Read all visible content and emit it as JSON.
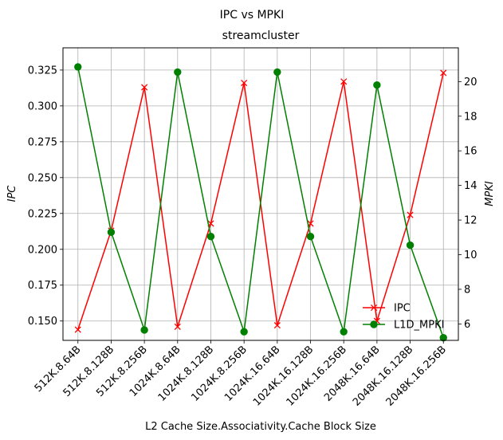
{
  "chart_data": {
    "type": "line",
    "suptitle": "IPC vs MPKI",
    "title": "streamcluster",
    "xlabel": "L2 Cache Size.Associativity.Cache Block Size",
    "ylabel_left": "IPC",
    "ylabel_right": "MPKI",
    "categories": [
      "512K.8.64B",
      "512K.8.128B",
      "512K.8.256B",
      "1024K.8.64B",
      "1024K.8.128B",
      "1024K.8.256B",
      "1024K.16.64B",
      "1024K.16.128B",
      "1024K.16.256B",
      "2048K.16.64B",
      "2048K.16.128B",
      "2048K.16.256B"
    ],
    "ylim_left": [
      0.1365,
      0.3405
    ],
    "yticks_left": [
      "0.150",
      "0.175",
      "0.200",
      "0.225",
      "0.250",
      "0.275",
      "0.300",
      "0.325"
    ],
    "ylim_right": [
      5.05,
      21.95
    ],
    "yticks_right": [
      "6",
      "8",
      "10",
      "12",
      "14",
      "16",
      "18",
      "20"
    ],
    "grid": true,
    "legend_position": "lower-right",
    "series": [
      {
        "name": "IPC",
        "axis": "left",
        "color": "#ff0000",
        "marker": "x",
        "values": [
          0.144,
          0.213,
          0.313,
          0.146,
          0.218,
          0.316,
          0.147,
          0.218,
          0.317,
          0.15,
          0.224,
          0.323
        ]
      },
      {
        "name": "L1D_MPKI",
        "axis": "right",
        "color": "#008000",
        "marker": "o",
        "values": [
          20.85,
          11.3,
          5.65,
          20.55,
          11.05,
          5.55,
          20.55,
          11.05,
          5.55,
          19.8,
          10.55,
          5.2
        ]
      }
    ]
  }
}
